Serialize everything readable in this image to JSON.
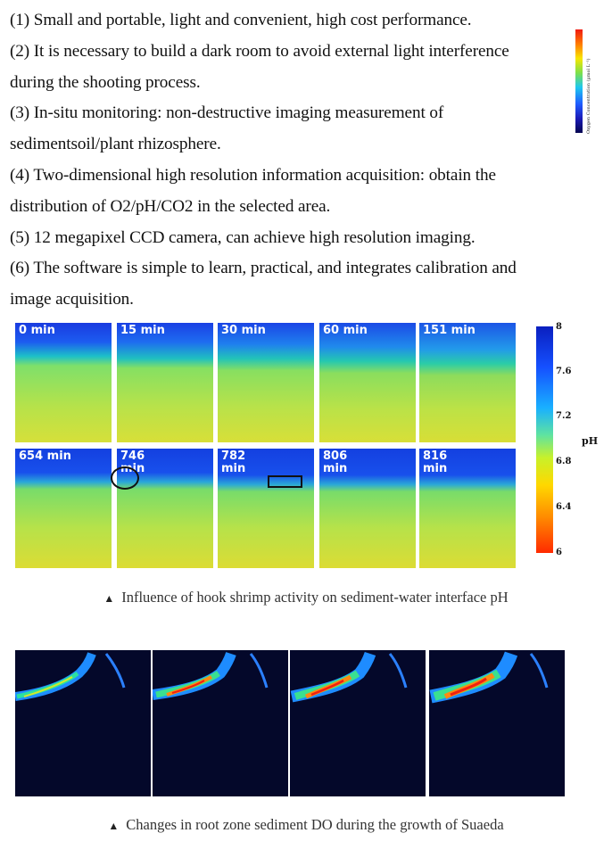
{
  "text_lines": [
    "(1) Small and portable, light and convenient, high cost performance.",
    "(2) It is necessary to build a dark room to avoid external light interference",
    "during the shooting process.",
    "(3) In-situ monitoring: non-destructive imaging measurement of",
    "sedimentsoil/plant rhizosphere.",
    "(4) Two-dimensional high resolution information acquisition: obtain the",
    "distribution of O2/pH/CO2 in the selected area.",
    "(5) 12 megapixel CCD camera, can achieve high resolution imaging.",
    "(6) The software is simple to learn, practical, and integrates calibration and",
    "image acquisition."
  ],
  "ph_figure": {
    "panel_labels": [
      "0 min",
      "15 min",
      "30 min",
      "60 min",
      "151 min",
      "654 min",
      "746\nmin",
      "782\nmin",
      "806\nmin",
      "816\nmin"
    ],
    "colorbar_ticks": [
      "8",
      "7.6",
      "7.2",
      "6.8",
      "6.4",
      "6"
    ],
    "colorbar_unit": "pH",
    "caption": "Influence of hook shrimp activity on sediment-water interface pH"
  },
  "do_figure": {
    "colorbar_axis_label": "Oxygen Concentration (µmol L⁻¹)",
    "caption": "Changes in root zone sediment DO during the growth of Suaeda"
  },
  "caption_marker": "▲"
}
